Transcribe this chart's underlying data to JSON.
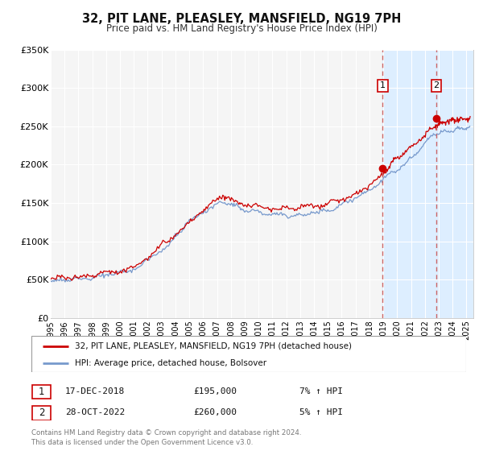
{
  "title": "32, PIT LANE, PLEASLEY, MANSFIELD, NG19 7PH",
  "subtitle": "Price paid vs. HM Land Registry's House Price Index (HPI)",
  "ylim": [
    0,
    350000
  ],
  "yticks": [
    0,
    50000,
    100000,
    150000,
    200000,
    250000,
    300000,
    350000
  ],
  "ytick_labels": [
    "£0",
    "£50K",
    "£100K",
    "£150K",
    "£200K",
    "£250K",
    "£300K",
    "£350K"
  ],
  "xlim_start": 1995.0,
  "xlim_end": 2025.5,
  "marker1_x": 2018.96,
  "marker1_y": 195000,
  "marker2_x": 2022.83,
  "marker2_y": 260000,
  "vline1_x": 2018.96,
  "vline2_x": 2022.83,
  "shade_start": 2018.96,
  "shade_end": 2025.5,
  "red_line_color": "#cc0000",
  "blue_line_color": "#7799cc",
  "shade_color": "#ddeeff",
  "vline_color": "#cc6666",
  "legend_label1": "32, PIT LANE, PLEASLEY, MANSFIELD, NG19 7PH (detached house)",
  "legend_label2": "HPI: Average price, detached house, Bolsover",
  "table_row1": [
    "1",
    "17-DEC-2018",
    "£195,000",
    "7% ↑ HPI"
  ],
  "table_row2": [
    "2",
    "28-OCT-2022",
    "£260,000",
    "5% ↑ HPI"
  ],
  "footer1": "Contains HM Land Registry data © Crown copyright and database right 2024.",
  "footer2": "This data is licensed under the Open Government Licence v3.0.",
  "background_color": "#ffffff",
  "plot_bg_color": "#f5f5f5"
}
